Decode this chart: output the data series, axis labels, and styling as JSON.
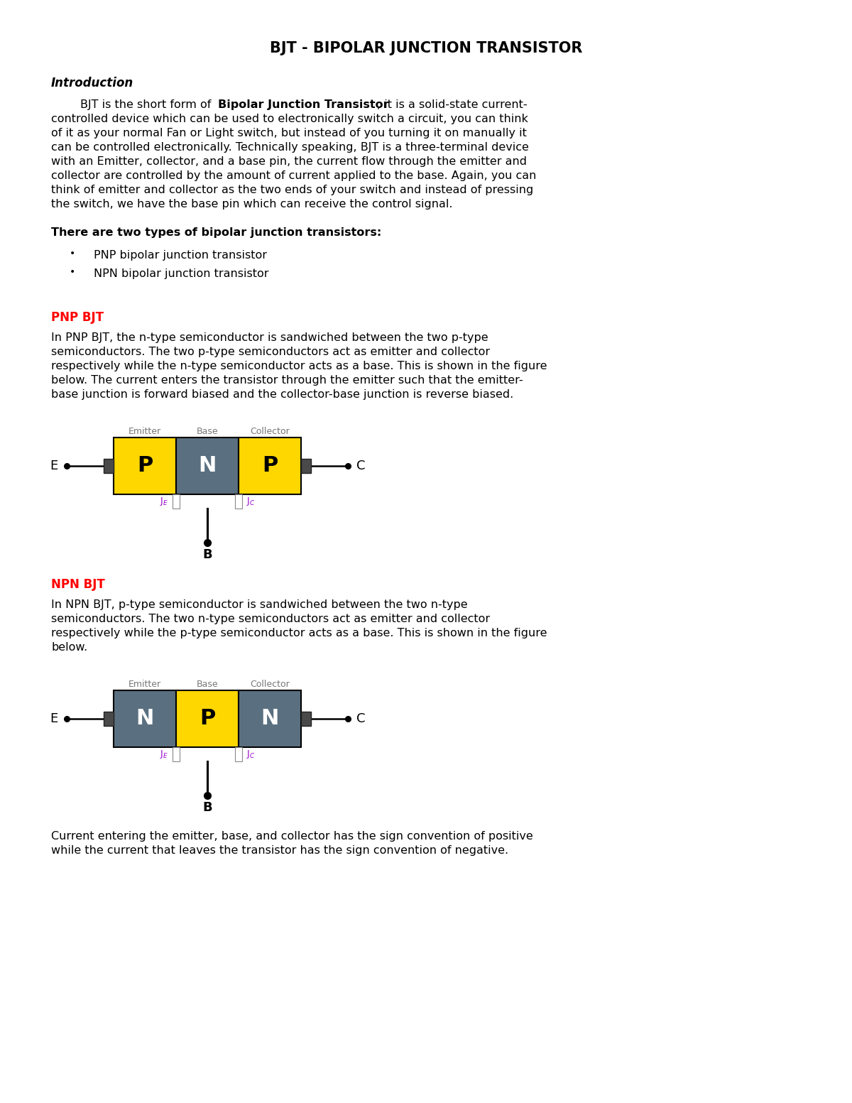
{
  "title": "BJT - BIPOLAR JUNCTION TRANSISTOR",
  "background_color": "#ffffff",
  "section_heading_color": "#ff0000",
  "intro_heading": "Introduction",
  "types_heading": "There are two types of bipolar junction transistors:",
  "bullet1": "PNP bipolar junction transistor",
  "bullet2": "NPN bipolar junction transistor",
  "pnp_heading": "PNP BJT",
  "pnp_para_lines": [
    "In PNP BJT, the n-type semiconductor is sandwiched between the two p-type",
    "semiconductors. The two p-type semiconductors act as emitter and collector",
    "respectively while the n-type semiconductor acts as a base. This is shown in the figure",
    "below. The current enters the transistor through the emitter such that the emitter-",
    "base junction is forward biased and the collector-base junction is reverse biased."
  ],
  "npn_heading": "NPN BJT",
  "npn_para_lines": [
    "In NPN BJT, p-type semiconductor is sandwiched between the two n-type",
    "semiconductors. The two n-type semiconductors act as emitter and collector",
    "respectively while the p-type semiconductor acts as a base. This is shown in the figure",
    "below."
  ],
  "footer_para_lines": [
    "Current entering the emitter, base, and collector has the sign convention of positive",
    "while the current that leaves the transistor has the sign convention of negative."
  ],
  "intro_line1_pre": "        BJT is the short form of ",
  "intro_line1_bold": "Bipolar Junction Transistor",
  "intro_line1_post": ", it is a solid-state current-",
  "intro_plain_lines": [
    "controlled device which can be used to electronically switch a circuit, you can think",
    "of it as your normal Fan or Light switch, but instead of you turning it on manually it",
    "can be controlled electronically. Technically speaking, BJT is a three-terminal device",
    "with an Emitter, collector, and a base pin, the current flow through the emitter and",
    "collector are controlled by the amount of current applied to the base. Again, you can",
    "think of emitter and collector as the two ends of your switch and instead of pressing",
    "the switch, we have the base pin which can receive the control signal."
  ],
  "yellow_color": "#FFD700",
  "gray_color": "#5a7080",
  "dark_gray": "#4a4a4a",
  "purple_color": "#9900cc",
  "body_fs": 11.5,
  "title_fs": 15,
  "heading_fs": 12,
  "section_fs": 12,
  "diagram_label_fs": 9,
  "diagram_letter_fs": 22,
  "diagram_terminal_fs": 13
}
